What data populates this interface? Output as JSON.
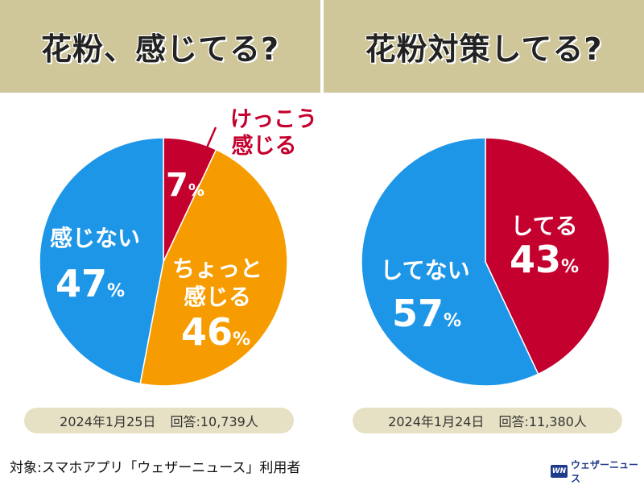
{
  "headers": {
    "left": "花粉、感じてる?",
    "right": "花粉対策してる?"
  },
  "chart_data": [
    {
      "type": "pie",
      "title": "花粉、感じてる?",
      "slices": [
        {
          "label": "けっこう感じる",
          "value": 7,
          "color": "#c4002e"
        },
        {
          "label": "ちょっと感じる",
          "value": 46,
          "color": "#f79c00"
        },
        {
          "label": "感じない",
          "value": 47,
          "color": "#1e96e8"
        }
      ],
      "date": "2024年1月25日",
      "responses": "回答:10,739人"
    },
    {
      "type": "pie",
      "title": "花粉対策してる?",
      "slices": [
        {
          "label": "してる",
          "value": 43,
          "color": "#c4002e"
        },
        {
          "label": "してない",
          "value": 57,
          "color": "#1e96e8"
        }
      ],
      "date": "2024年1月24日",
      "responses": "回答:11,380人"
    }
  ],
  "labels": {
    "left": {
      "kekkou_line1": "けっこう",
      "kekkou_line2": "感じる",
      "kekkou_pct": "7",
      "chotto_line1": "ちょっと",
      "chotto_line2": "感じる",
      "chotto_pct": "46",
      "kanjinai": "感じない",
      "kanjinai_pct": "47"
    },
    "right": {
      "shiteru": "してる",
      "shiteru_pct": "43",
      "shitenai": "してない",
      "shitenai_pct": "57"
    },
    "percent_sign": "%"
  },
  "footer": {
    "note": "対象:スマホアプリ「ウェザーニュース」利用者",
    "logo_mark": "WN",
    "logo_text": "ウェザーニュース"
  }
}
